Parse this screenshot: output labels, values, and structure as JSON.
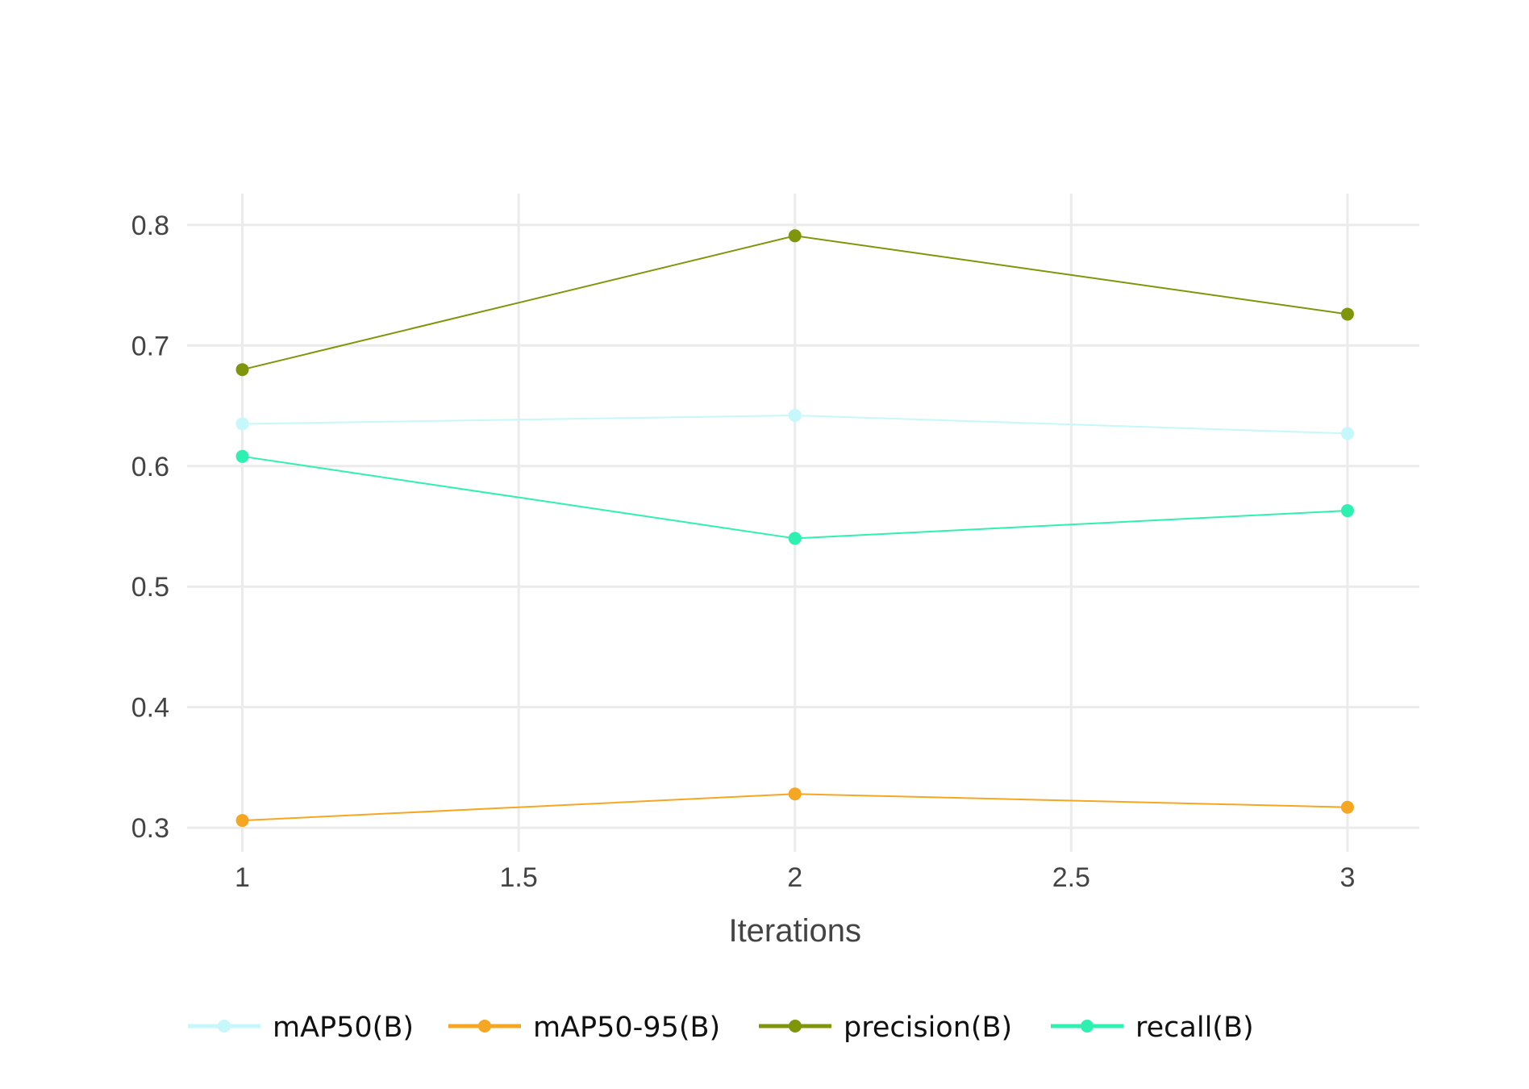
{
  "chart_data": {
    "type": "line",
    "xlabel": "Iterations",
    "ylabel": "",
    "title": "",
    "x": [
      1,
      2,
      3
    ],
    "xlim": [
      0.9,
      3.13
    ],
    "ylim": [
      0.28,
      0.826
    ],
    "xticks": [
      1,
      1.5,
      2,
      2.5,
      3
    ],
    "xtick_labels": [
      "1",
      "1.5",
      "2",
      "2.5",
      "3"
    ],
    "yticks": [
      0.3,
      0.4,
      0.5,
      0.6,
      0.7,
      0.8
    ],
    "ytick_labels": [
      "0.3",
      "0.4",
      "0.5",
      "0.6",
      "0.7",
      "0.8"
    ],
    "grid": true,
    "legend_position": "bottom",
    "series": [
      {
        "name": "mAP50(B)",
        "color": "#c6f7fb",
        "values": [
          0.635,
          0.642,
          0.627
        ]
      },
      {
        "name": "mAP50-95(B)",
        "color": "#f5a623",
        "values": [
          0.306,
          0.328,
          0.317
        ]
      },
      {
        "name": "precision(B)",
        "color": "#7f960b",
        "values": [
          0.68,
          0.791,
          0.726
        ]
      },
      {
        "name": "recall(B)",
        "color": "#2ef0b0",
        "values": [
          0.608,
          0.54,
          0.563
        ]
      }
    ]
  }
}
